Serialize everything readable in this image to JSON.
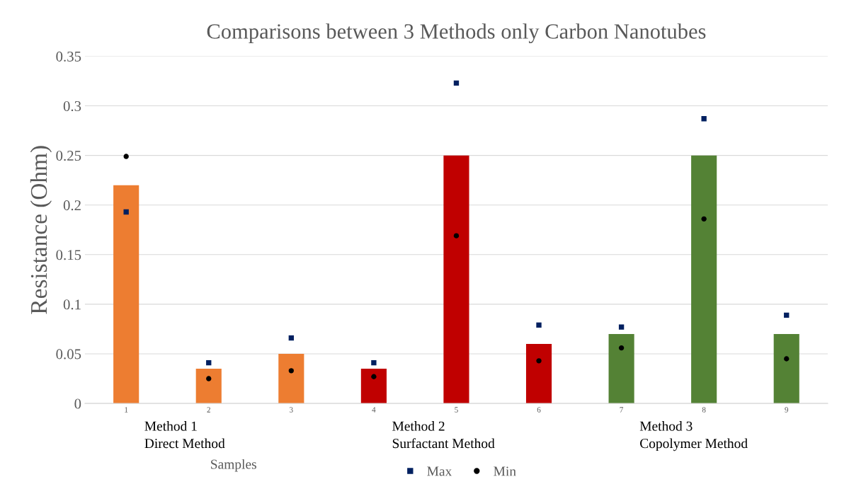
{
  "chart_data": {
    "type": "bar",
    "title": "Comparisons between 3 Methods only Carbon Nanotubes",
    "xlabel": "Samples",
    "ylabel": "Resistance (Ohm)",
    "categories": [
      "1",
      "2",
      "3",
      "4",
      "5",
      "6",
      "7",
      "8",
      "9"
    ],
    "series": [
      {
        "colors": [
          "#ed7d31",
          "#ed7d31",
          "#ed7d31",
          "#c00000",
          "#c00000",
          "#c00000",
          "#548235",
          "#548235",
          "#548235"
        ],
        "values": [
          0.22,
          0.035,
          0.05,
          0.035,
          0.25,
          0.06,
          0.07,
          0.25,
          0.07
        ]
      },
      {
        "type": "scatter",
        "name": "Max",
        "color": "#002060",
        "marker": "square",
        "values": [
          0.193,
          0.041,
          0.066,
          0.041,
          0.323,
          0.079,
          0.077,
          0.287,
          0.089
        ]
      },
      {
        "type": "scatter",
        "name": "Min",
        "color": "#000000",
        "marker": "circle",
        "values": [
          0.249,
          0.025,
          0.033,
          0.027,
          0.169,
          0.043,
          0.056,
          0.186,
          0.045
        ]
      }
    ],
    "ylim": [
      0,
      0.35
    ],
    "yticks": [
      0,
      0.05,
      0.1,
      0.15,
      0.2,
      0.25,
      0.3,
      0.35
    ],
    "grid": "y",
    "legend": "bottom",
    "annotations": [
      "Method 1\nDirect Method",
      "Method 2\nSurfactant Method",
      "Method 3\nCopolymer Method"
    ]
  }
}
